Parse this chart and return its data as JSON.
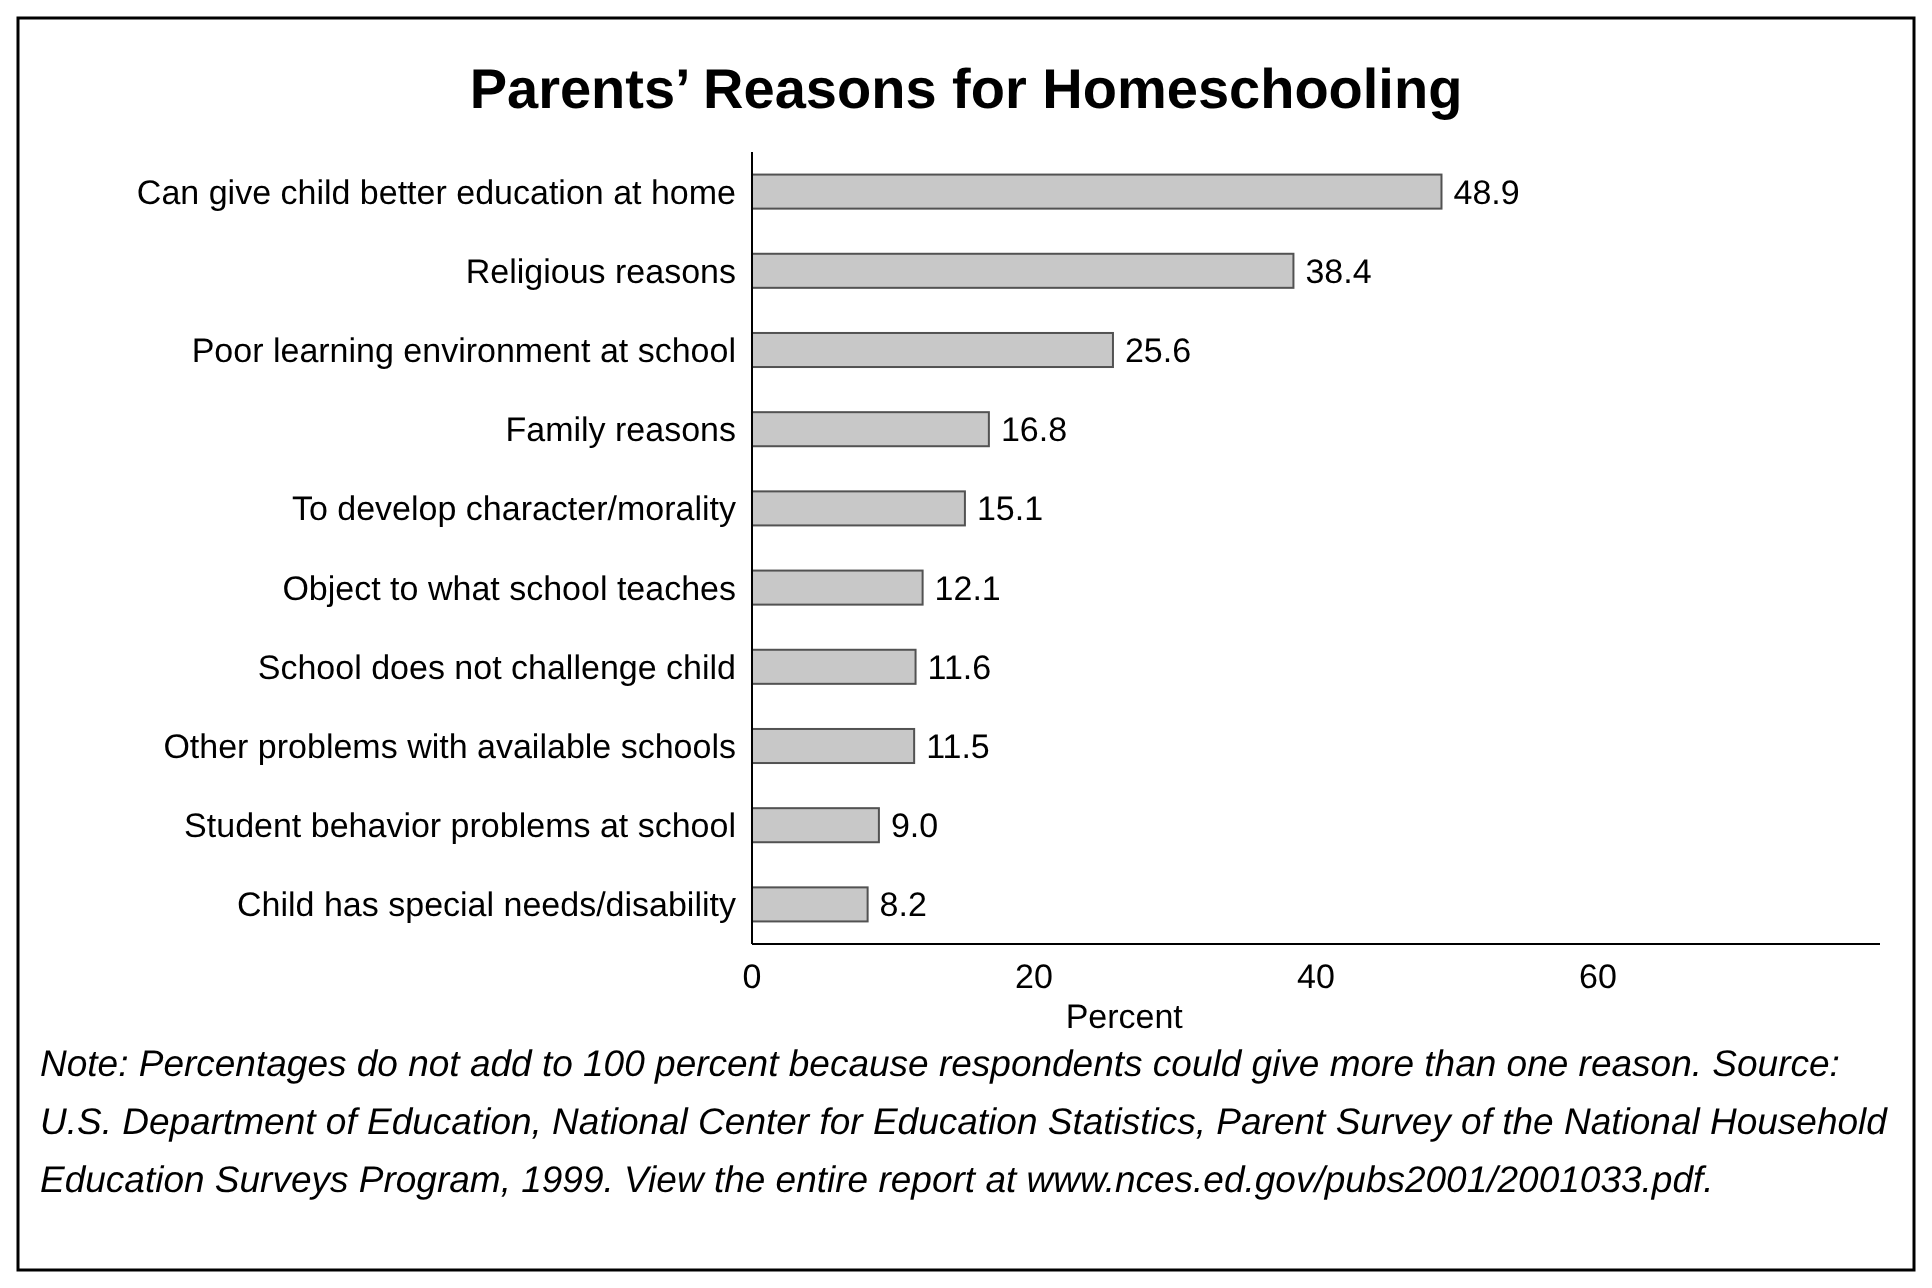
{
  "chart_data": {
    "type": "bar",
    "orientation": "horizontal",
    "title": "Parents’ Reasons for Homeschooling",
    "xlabel": "Percent",
    "categories": [
      "Can give child better education at home",
      "Religious reasons",
      "Poor learning environment at school",
      "Family reasons",
      "To develop character/morality",
      "Object to what school teaches",
      "School does not challenge child",
      "Other problems with available schools",
      "Student behavior problems at school",
      "Child has special needs/disability"
    ],
    "values": [
      48.9,
      38.4,
      25.6,
      16.8,
      15.1,
      12.1,
      11.6,
      11.5,
      9.0,
      8.2
    ],
    "value_labels": [
      "48.9",
      "38.4",
      "25.6",
      "16.8",
      "15.1",
      "12.1",
      "11.6",
      "11.5",
      "9.0",
      "8.2"
    ],
    "color": "#c8c8c8",
    "xlim": [
      0,
      80
    ],
    "xticks": [
      0,
      20,
      40,
      60
    ],
    "grid": false,
    "annotations": [
      "Note: Percentages do not add to 100 percent because respondents could give more than one reason. Source: U.S. Department of Education, National Center for Education Statistics, Parent Survey of the National Household Education Surveys Program, 1999. View the entire report at www.nces.ed.gov/pubs2001/2001033.pdf."
    ]
  }
}
